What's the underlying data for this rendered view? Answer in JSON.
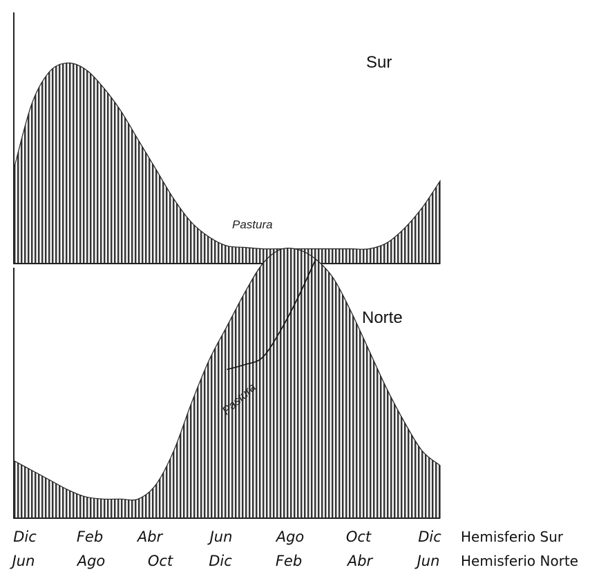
{
  "chart_data": [
    {
      "type": "area",
      "title": "Sur",
      "x": [
        0,
        0.5,
        1,
        1.5,
        2,
        2.5,
        3,
        3.5,
        4,
        4.5,
        5,
        5.5,
        6,
        6.5,
        7,
        7.5,
        8,
        8.5,
        9,
        9.5,
        10,
        10.5,
        11,
        11.5,
        12
      ],
      "series": [
        {
          "values": [
            3.2,
            5.4,
            6.5,
            6.8,
            6.6,
            6.0,
            5.2,
            4.2,
            3.2,
            2.2,
            1.4,
            0.9,
            0.6,
            0.55,
            0.5,
            0.5,
            0.5,
            0.5,
            0.5,
            0.5,
            0.5,
            0.7,
            1.2,
            1.9,
            2.8
          ]
        }
      ],
      "annotations": [
        {
          "text": "Pastura",
          "x": 6.8
        }
      ],
      "ylim": [
        0,
        8
      ],
      "grid": false
    },
    {
      "type": "area",
      "title": "Norte",
      "x": [
        0,
        0.5,
        1,
        1.5,
        2,
        2.5,
        3,
        3.5,
        4,
        4.5,
        5,
        5.5,
        6,
        6.5,
        7,
        7.5,
        8,
        8.5,
        9,
        9.5,
        10,
        10.5,
        11,
        11.5,
        12
      ],
      "series": [
        {
          "values": [
            1.2,
            1.0,
            0.8,
            0.6,
            0.45,
            0.4,
            0.4,
            0.4,
            0.7,
            1.4,
            2.4,
            3.3,
            4.0,
            4.7,
            5.3,
            5.6,
            5.6,
            5.4,
            5.0,
            4.3,
            3.5,
            2.7,
            2.0,
            1.4,
            1.1
          ]
        },
        {
          "x": [
            6,
            6.5,
            7,
            7.5,
            8,
            8.5
          ],
          "values": [
            3.1,
            3.2,
            3.35,
            3.9,
            4.6,
            5.4
          ]
        }
      ],
      "annotations": [
        {
          "text": "Pastura",
          "x": 6.4
        }
      ],
      "ylim": [
        0,
        6.2
      ],
      "grid": false
    }
  ],
  "axis": {
    "row1": {
      "ticks": [
        "Dic",
        "Feb",
        "Abr",
        "Jun",
        "Ago",
        "Oct",
        "Dic"
      ],
      "label": "Hemisferio Sur"
    },
    "row2": {
      "ticks": [
        "Jun",
        "Ago",
        "Oct",
        "Dic",
        "Feb",
        "Abr",
        "Jun"
      ],
      "label": "Hemisferio Norte"
    }
  },
  "colors": {
    "ink": "#111111",
    "hatch": "#3a3a3a"
  }
}
